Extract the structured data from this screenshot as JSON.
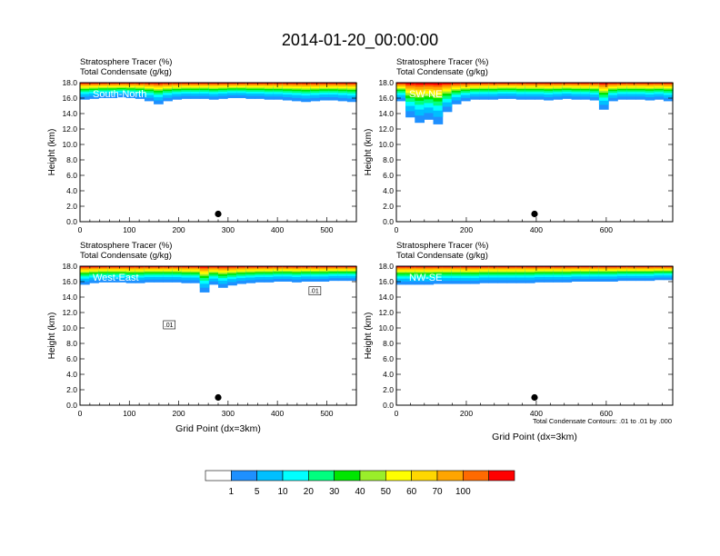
{
  "figure": {
    "title": "2014-01-20_00:00:00",
    "contour_note": "Total Condensate Contours: .01 to .01 by .000"
  },
  "colors": {
    "levels": [
      "#ffffff",
      "#1e90ff",
      "#00bfff",
      "#00ffff",
      "#00ff7f",
      "#00e600",
      "#9aee2a",
      "#ffff00",
      "#ffd700",
      "#ffa500",
      "#ff6a00",
      "#ff0000"
    ]
  },
  "chart_data": [
    {
      "type": "heatmap",
      "panel_label": "South-North",
      "title_line1": "Stratosphere Tracer   (%)",
      "title_line2": "Total Condensate   (g/kg)",
      "ylabel": "Height (km)",
      "xlabel": "",
      "xlim": [
        0,
        560
      ],
      "xticks": [
        0,
        100,
        200,
        300,
        400,
        500
      ],
      "ylim": [
        0,
        18
      ],
      "yticks": [
        "0.0",
        "2.0",
        "4.0",
        "6.0",
        "8.0",
        "10.0",
        "12.0",
        "14.0",
        "16.0",
        "18.0"
      ],
      "marker_x": 280,
      "marker_y": 1.0,
      "tracer_base_km": [
        15.8,
        15.9,
        16.0,
        16.0,
        16.1,
        16.0,
        15.9,
        15.6,
        15.2,
        15.6,
        15.8,
        15.9,
        15.9,
        15.9,
        15.8,
        15.9,
        16.0,
        16.0,
        15.9,
        15.9,
        15.8,
        15.8,
        15.7,
        15.6,
        15.5,
        15.6,
        15.7,
        15.7,
        15.6,
        15.5
      ]
    },
    {
      "type": "heatmap",
      "panel_label": "SW-NE",
      "title_line1": "Stratosphere Tracer   (%)",
      "title_line2": "Total Condensate   (g/kg)",
      "ylabel": "Height (km)",
      "xlabel": "",
      "xlim": [
        0,
        790
      ],
      "xticks": [
        0,
        200,
        400,
        600
      ],
      "ylim": [
        0,
        18
      ],
      "yticks": [
        "0.0",
        "2.0",
        "4.0",
        "6.0",
        "8.0",
        "10.0",
        "12.0",
        "14.0",
        "16.0",
        "18.0"
      ],
      "marker_x": 395,
      "marker_y": 1.0,
      "tracer_base_km": [
        15.6,
        13.5,
        12.8,
        13.2,
        12.6,
        14.2,
        15.2,
        15.6,
        15.8,
        15.8,
        15.8,
        15.9,
        15.9,
        15.8,
        15.8,
        15.8,
        15.7,
        15.8,
        15.9,
        15.8,
        15.8,
        15.7,
        14.5,
        15.6,
        15.8,
        15.8,
        15.8,
        15.7,
        15.8,
        15.6
      ]
    },
    {
      "type": "heatmap",
      "panel_label": "West-East",
      "title_line1": "Stratosphere Tracer   (%)",
      "title_line2": "Total Condensate   (g/kg)",
      "ylabel": "Height (km)",
      "xlabel": "Grid Point (dx=3km)",
      "xlim": [
        0,
        560
      ],
      "xticks": [
        0,
        100,
        200,
        300,
        400,
        500
      ],
      "ylim": [
        0,
        18
      ],
      "yticks": [
        "0.0",
        "2.0",
        "4.0",
        "6.0",
        "8.0",
        "10.0",
        "12.0",
        "14.0",
        "16.0",
        "18.0"
      ],
      "marker_x": 280,
      "marker_y": 1.0,
      "contour_label_1": ".01",
      "contour_label_2": ".01",
      "tracer_base_km": [
        15.6,
        15.8,
        15.9,
        15.9,
        15.9,
        15.8,
        15.8,
        15.9,
        15.9,
        15.9,
        15.9,
        15.8,
        15.8,
        14.6,
        15.6,
        15.2,
        15.5,
        15.7,
        15.8,
        15.9,
        15.9,
        16.0,
        16.0,
        15.9,
        16.0,
        16.0,
        16.0,
        16.1,
        16.1,
        16.1
      ]
    },
    {
      "type": "heatmap",
      "panel_label": "NW-SE",
      "title_line1": "Stratosphere Tracer   (%)",
      "title_line2": "Total Condensate   (g/kg)",
      "ylabel": "Height (km)",
      "xlabel": "Grid Point (dx=3km)",
      "xlim": [
        0,
        790
      ],
      "xticks": [
        0,
        200,
        400,
        600
      ],
      "ylim": [
        0,
        18
      ],
      "yticks": [
        "0.0",
        "2.0",
        "4.0",
        "6.0",
        "8.0",
        "10.0",
        "12.0",
        "14.0",
        "16.0",
        "18.0"
      ],
      "marker_x": 395,
      "marker_y": 1.0,
      "tracer_base_km": [
        15.6,
        15.6,
        15.6,
        15.6,
        15.7,
        15.7,
        15.7,
        15.7,
        15.7,
        15.8,
        15.8,
        15.8,
        15.8,
        15.8,
        15.8,
        15.9,
        15.9,
        15.9,
        15.9,
        16.0,
        16.0,
        16.0,
        16.0,
        16.0,
        16.1,
        16.1,
        16.1,
        16.1,
        16.2,
        16.2
      ]
    }
  ],
  "colorbar": {
    "labels": [
      "1",
      "5",
      "10",
      "20",
      "30",
      "40",
      "50",
      "60",
      "70",
      "100"
    ]
  }
}
